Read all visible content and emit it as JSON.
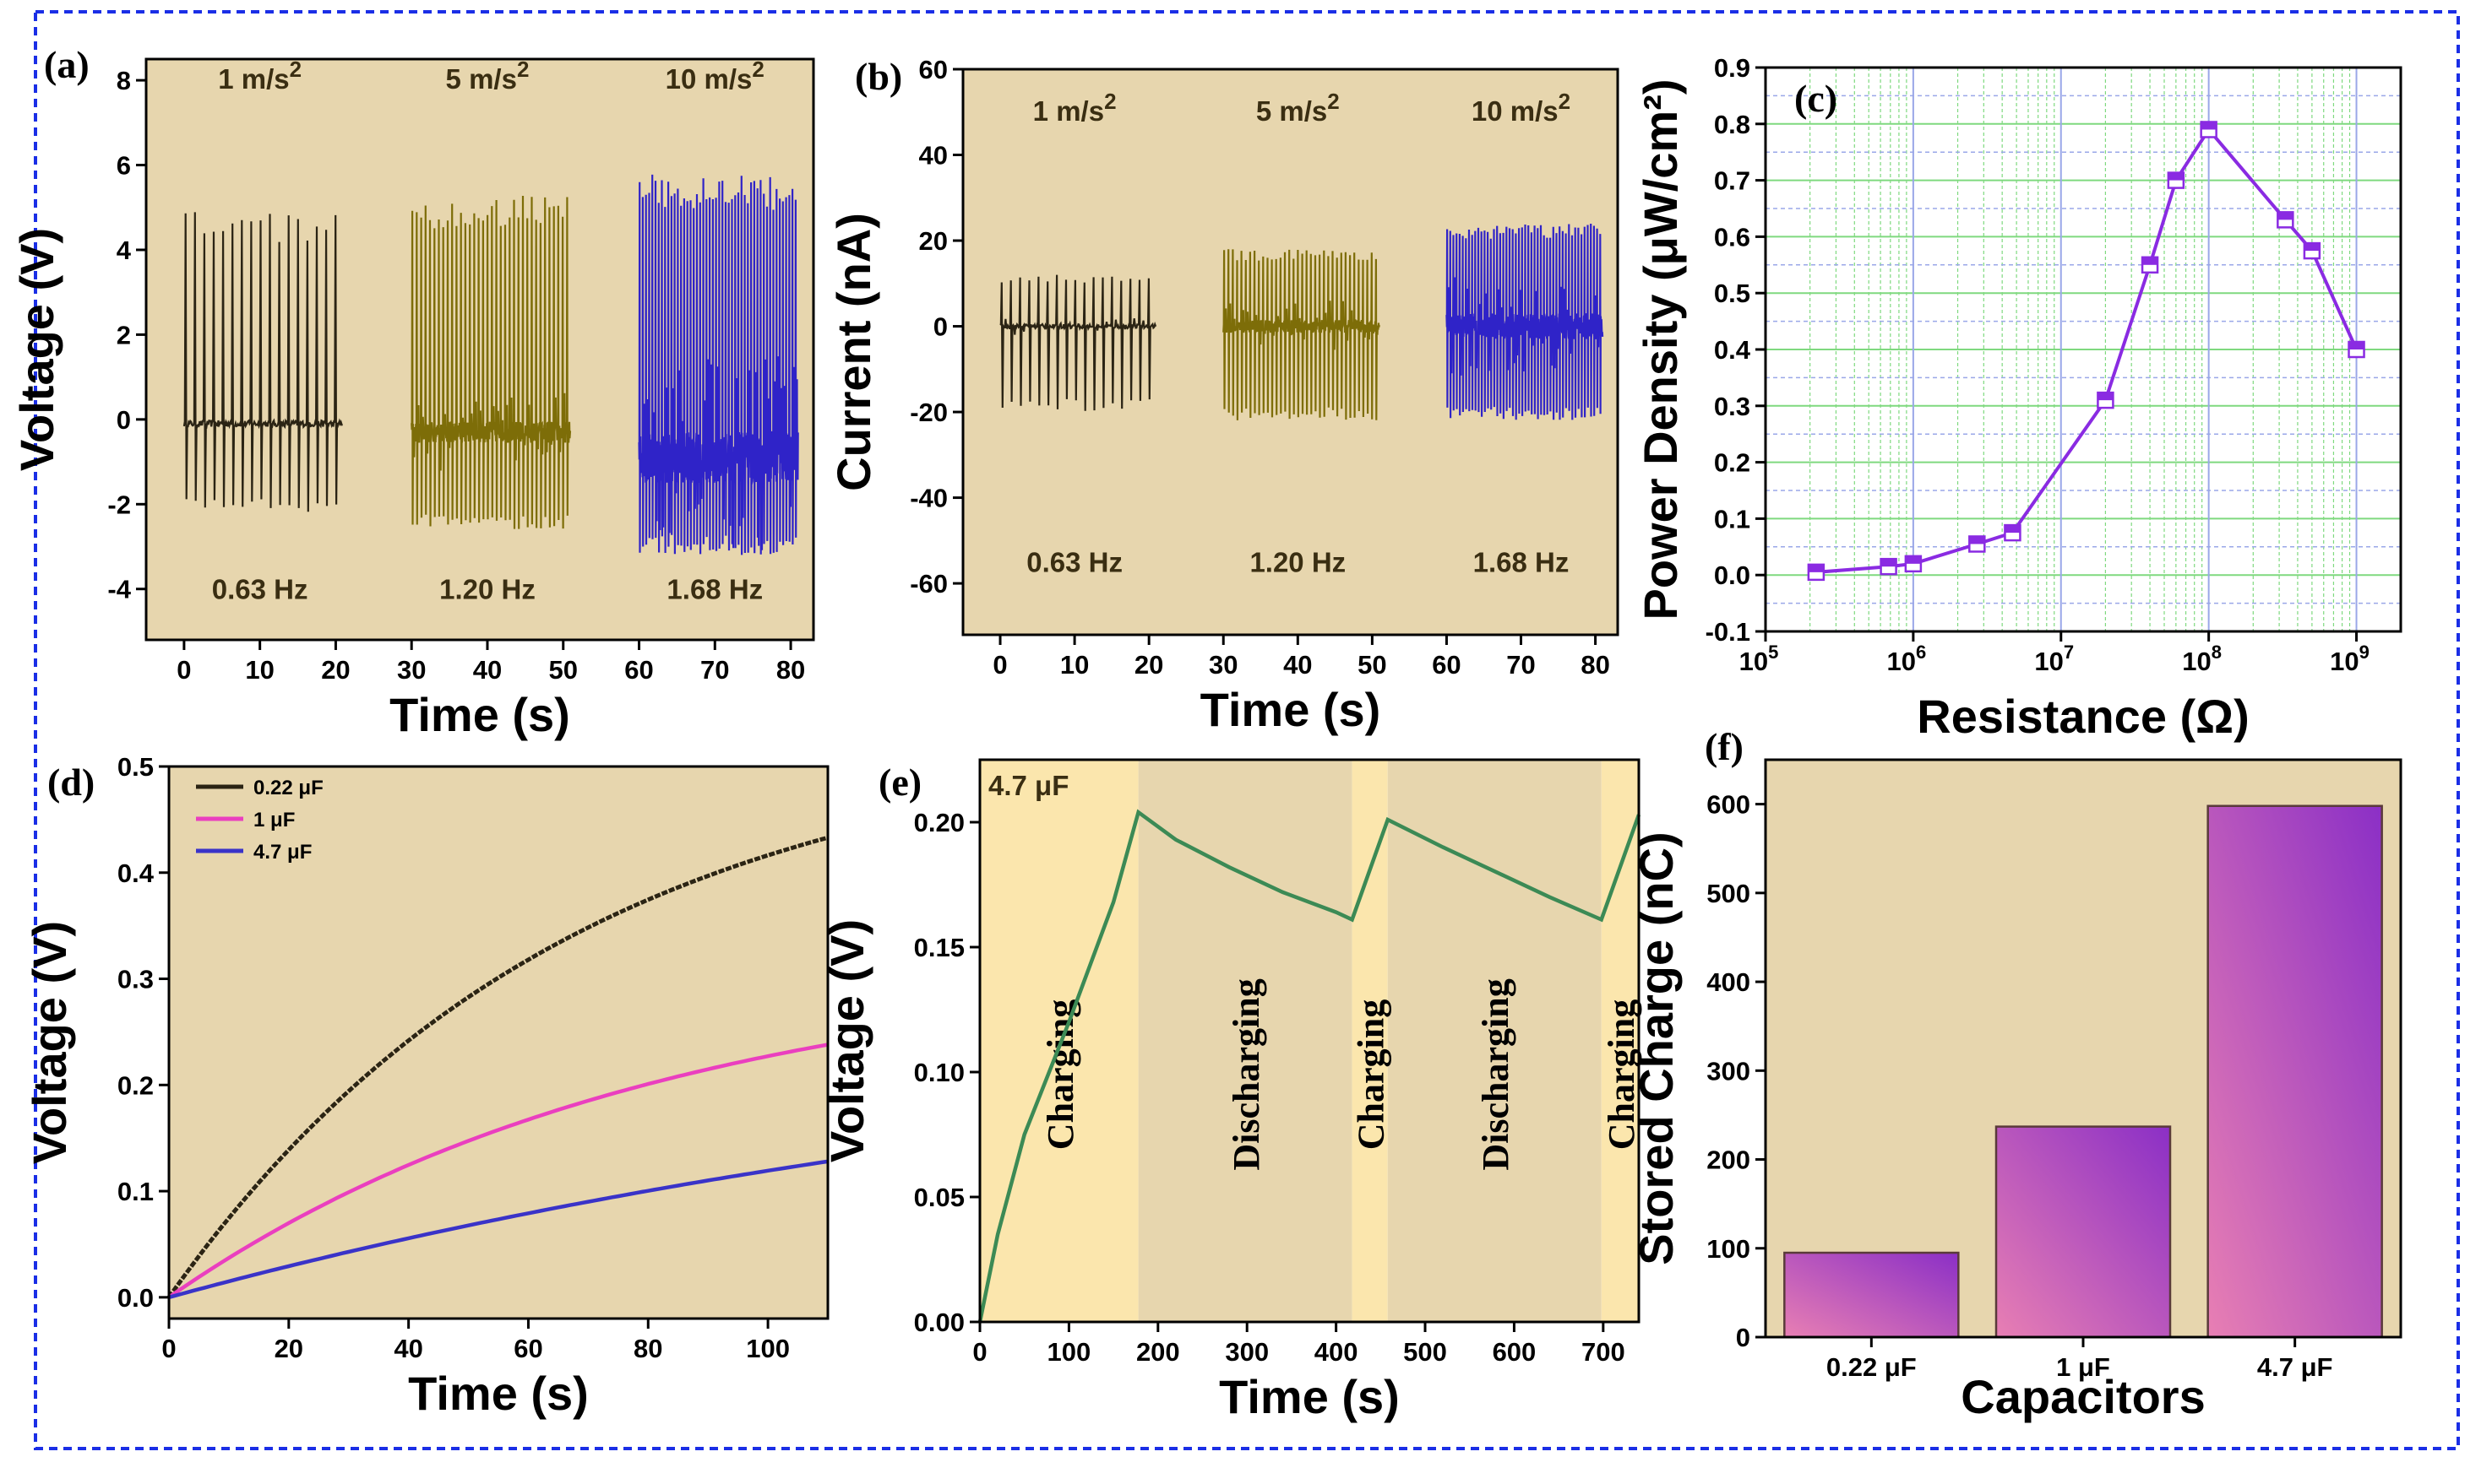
{
  "figure": {
    "border_color": "#1a2ee6",
    "plot_background": "#e7d6ae"
  },
  "chart_data": [
    {
      "id": "a",
      "panel_label": "(a)",
      "type": "line",
      "title": "",
      "xlabel": "Time (s)",
      "ylabel": "Voltage (V)",
      "xlim": [
        -5,
        83
      ],
      "ylim": [
        -5.2,
        8.5
      ],
      "xticks": [
        0,
        10,
        20,
        30,
        40,
        50,
        60,
        70,
        80
      ],
      "yticks": [
        -4,
        -2,
        0,
        2,
        4,
        6,
        8
      ],
      "series": [
        {
          "name": "1 m/s2",
          "color": "#2b2414",
          "x_range": [
            0,
            21
          ],
          "peaks": 17,
          "max": 4.9,
          "min": -2.2,
          "base": -0.1,
          "noise": 0.15
        },
        {
          "name": "5 m/s2",
          "color": "#7d6d08",
          "x_range": [
            30,
            51
          ],
          "peaks": 36,
          "max": 5.3,
          "min": -2.6,
          "base": -0.3,
          "noise": 0.5
        },
        {
          "name": "10 m/s2",
          "color": "#2f23c8",
          "x_range": [
            60,
            81
          ],
          "peaks": 50,
          "max": 5.8,
          "min": -3.2,
          "base": -0.9,
          "noise": 1.2
        }
      ],
      "top_labels": [
        {
          "text": "1 m/s",
          "sup": "2",
          "x": 10
        },
        {
          "text": "5 m/s",
          "sup": "2",
          "x": 40
        },
        {
          "text": "10 m/s",
          "sup": "2",
          "x": 70
        }
      ],
      "freq_labels": [
        {
          "text": "0.63 Hz",
          "x": 10
        },
        {
          "text": "1.20 Hz",
          "x": 40
        },
        {
          "text": "1.68 Hz",
          "x": 70
        }
      ],
      "label_y_top": 7.8,
      "label_y_bottom": -4.0
    },
    {
      "id": "b",
      "panel_label": "(b)",
      "type": "line",
      "title": "",
      "xlabel": "Time (s)",
      "ylabel": "Current (nA)",
      "xlim": [
        -5,
        83
      ],
      "ylim": [
        -72,
        60
      ],
      "xticks": [
        0,
        10,
        20,
        30,
        40,
        50,
        60,
        70,
        80
      ],
      "yticks": [
        -60,
        -40,
        -20,
        0,
        20,
        40,
        60
      ],
      "series": [
        {
          "name": "1 m/s2",
          "color": "#2b2414",
          "x_range": [
            0,
            21
          ],
          "peaks": 17,
          "max": 12,
          "min": -20,
          "base": 0,
          "noise": 1
        },
        {
          "name": "5 m/s2",
          "color": "#7d6d08",
          "x_range": [
            30,
            51
          ],
          "peaks": 36,
          "max": 18,
          "min": -22,
          "base": 0,
          "noise": 3
        },
        {
          "name": "10 m/s2",
          "color": "#2f23c8",
          "x_range": [
            60,
            81
          ],
          "peaks": 50,
          "max": 24,
          "min": -22,
          "base": 0,
          "noise": 6
        }
      ],
      "top_labels": [
        {
          "text": "1 m/s",
          "sup": "2",
          "x": 10
        },
        {
          "text": "5 m/s",
          "sup": "2",
          "x": 40
        },
        {
          "text": "10 m/s",
          "sup": "2",
          "x": 70
        }
      ],
      "freq_labels": [
        {
          "text": "0.63 Hz",
          "x": 10
        },
        {
          "text": "1.20 Hz",
          "x": 40
        },
        {
          "text": "1.68 Hz",
          "x": 70
        }
      ],
      "label_y_top": 48,
      "label_y_bottom": -55
    },
    {
      "id": "c",
      "panel_label": "(c)",
      "type": "line",
      "title": "",
      "xlabel": "Resistance (Ω)",
      "ylabel": "Power Density (μW/cm²)",
      "xscale": "log",
      "xlim_exp": [
        5,
        9.3
      ],
      "ylim": [
        -0.1,
        0.9
      ],
      "xticks_exp": [
        5,
        6,
        7,
        8,
        9
      ],
      "yticks": [
        -0.1,
        0.0,
        0.1,
        0.2,
        0.3,
        0.4,
        0.5,
        0.6,
        0.7,
        0.8,
        0.9
      ],
      "line_color": "#8a2be2",
      "grid_color_major": "#7fd97f",
      "grid_color_minor": "#9aa7e8",
      "x": [
        220000,
        680000,
        1000000,
        2700000,
        4700000,
        20000000,
        40000000,
        60000000,
        100000000,
        330000000,
        500000000,
        1000000000
      ],
      "y": [
        0.005,
        0.015,
        0.02,
        0.055,
        0.075,
        0.31,
        0.55,
        0.7,
        0.79,
        0.63,
        0.575,
        0.4
      ]
    },
    {
      "id": "d",
      "panel_label": "(d)",
      "type": "line",
      "title": "",
      "xlabel": "Time (s)",
      "ylabel": "Voltage (V)",
      "xlim": [
        0,
        110
      ],
      "ylim": [
        -0.02,
        0.5
      ],
      "xticks": [
        0,
        20,
        40,
        60,
        80,
        100
      ],
      "yticks": [
        0.0,
        0.1,
        0.2,
        0.3,
        0.4,
        0.5
      ],
      "legend_position": "top-left",
      "series": [
        {
          "name": "0.22 μF",
          "color": "#2b2414",
          "end": 0.433,
          "curve": 0.55,
          "dots": true
        },
        {
          "name": "1 μF",
          "color": "#ea3fbf",
          "end": 0.238,
          "curve": 0.45,
          "dots": false
        },
        {
          "name": "4.7 μF",
          "color": "#3a33c8",
          "end": 0.128,
          "curve": 0.2,
          "dots": false
        }
      ]
    },
    {
      "id": "e",
      "panel_label": "(e)",
      "type": "line",
      "title": "",
      "xlabel": "Time (s)",
      "ylabel": "Voltage (V)",
      "xlim": [
        0,
        740
      ],
      "ylim": [
        0,
        0.225
      ],
      "xticks": [
        0,
        100,
        200,
        300,
        400,
        500,
        600,
        700
      ],
      "yticks": [
        0.0,
        0.05,
        0.1,
        0.15,
        0.2
      ],
      "line_color": "#3c8a55",
      "inset_label": "4.7 μF",
      "phases": [
        {
          "label": "Charging",
          "start": 0,
          "end": 178,
          "color": "#fbe6ad"
        },
        {
          "label": "Discharging",
          "start": 178,
          "end": 418,
          "color": "#e7d6ae"
        },
        {
          "label": "Charging",
          "start": 418,
          "end": 458,
          "color": "#fbe6ad"
        },
        {
          "label": "Discharging",
          "start": 458,
          "end": 698,
          "color": "#e7d6ae"
        },
        {
          "label": "Charging",
          "start": 698,
          "end": 740,
          "color": "#fbe6ad"
        }
      ],
      "x": [
        0,
        20,
        50,
        100,
        150,
        178,
        220,
        280,
        340,
        400,
        418,
        458,
        520,
        580,
        640,
        698,
        740
      ],
      "y": [
        0.0,
        0.035,
        0.075,
        0.12,
        0.168,
        0.204,
        0.193,
        0.182,
        0.172,
        0.164,
        0.161,
        0.201,
        0.19,
        0.18,
        0.17,
        0.161,
        0.203
      ]
    },
    {
      "id": "f",
      "panel_label": "(f)",
      "type": "bar",
      "title": "",
      "xlabel": "Capacitors",
      "ylabel": "Stored Charge (nC)",
      "ylim": [
        0,
        650
      ],
      "yticks": [
        0,
        100,
        200,
        300,
        400,
        500,
        600
      ],
      "categories": [
        "0.22 μF",
        "1 μF",
        "4.7 μF"
      ],
      "values": [
        95,
        237,
        598
      ],
      "bar_color_start": "#e87fb3",
      "bar_color_end": "#8b2fc6"
    }
  ]
}
